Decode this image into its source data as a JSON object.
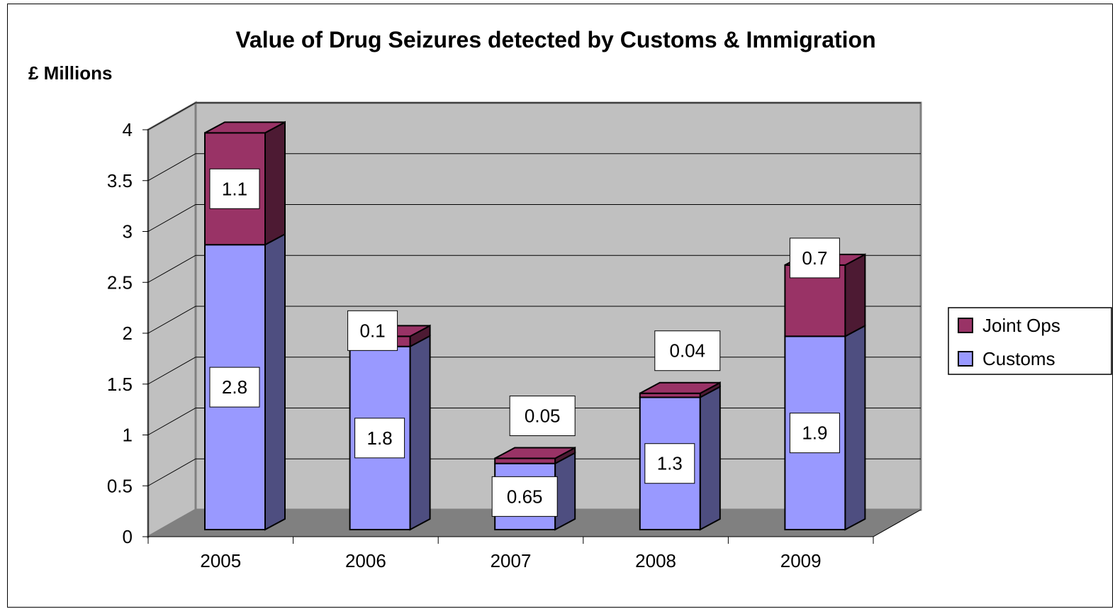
{
  "chart_data": {
    "type": "bar",
    "stacked": true,
    "three_d": true,
    "title": "Value of Drug Seizures detected by Customs & Immigration",
    "ylabel": "£ Millions",
    "xlabel": "",
    "categories": [
      "2005",
      "2006",
      "2007",
      "2008",
      "2009"
    ],
    "series": [
      {
        "name": "Customs",
        "values": [
          2.8,
          1.8,
          0.65,
          1.3,
          1.9
        ],
        "labels": [
          "2.8",
          "1.8",
          "0.65",
          "1.3",
          "1.9"
        ],
        "color": "#9999ff",
        "side_color": "#4e4e80",
        "top_color": "#b3b3ff"
      },
      {
        "name": "Joint Ops",
        "values": [
          1.1,
          0.1,
          0.05,
          0.04,
          0.7
        ],
        "labels": [
          "1.1",
          "0.1",
          "0.05",
          "0.04",
          "0.7"
        ],
        "color": "#993366",
        "side_color": "#4d1a33",
        "top_color": "#993366"
      }
    ],
    "ylim": [
      0,
      4
    ],
    "yticks": [
      "0",
      "0.5",
      "1",
      "1.5",
      "2",
      "2.5",
      "3",
      "3.5",
      "4"
    ],
    "grid": true,
    "legend_position": "right",
    "legend_order": [
      "Joint Ops",
      "Customs"
    ],
    "wall_color": "#c0c0c0",
    "floor_color": "#808080"
  }
}
